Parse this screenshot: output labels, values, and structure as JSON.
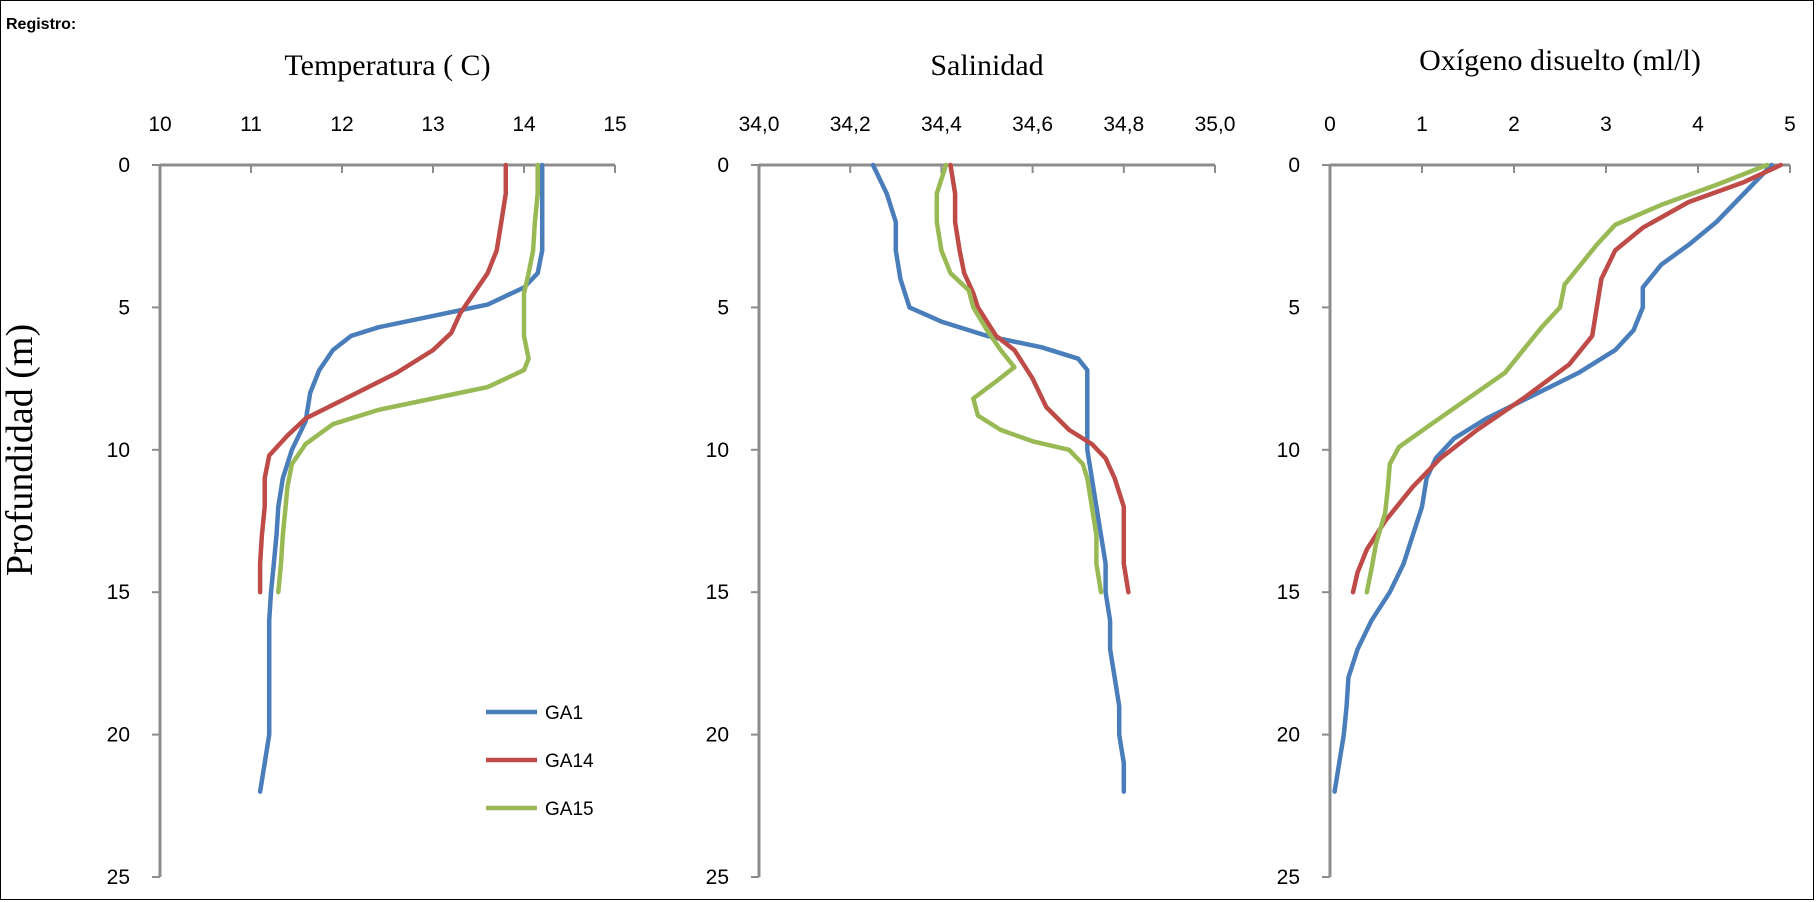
{
  "header": {
    "label": "Registro:"
  },
  "ylabel": "Profundidad (m)",
  "colors": {
    "GA1": "#4a7ebb",
    "GA14": "#be4b48",
    "GA15": "#98b954",
    "axis": "#8c8c8c"
  },
  "legend": [
    "GA1",
    "GA14",
    "GA15"
  ],
  "chart_data": [
    {
      "type": "line",
      "title": "Temperatura ( C)",
      "xlim": [
        10,
        15
      ],
      "x_ticks": [
        "10",
        "11",
        "12",
        "13",
        "14",
        "15"
      ],
      "ylim": [
        0,
        25
      ],
      "y_ticks": [
        "0",
        "5",
        "10",
        "15",
        "20",
        "25"
      ],
      "y_inverted": true,
      "series": [
        {
          "name": "GA1",
          "points": [
            [
              14.2,
              0
            ],
            [
              14.2,
              1
            ],
            [
              14.2,
              2
            ],
            [
              14.2,
              3
            ],
            [
              14.15,
              3.8
            ],
            [
              14.0,
              4.3
            ],
            [
              13.6,
              4.9
            ],
            [
              13.0,
              5.3
            ],
            [
              12.4,
              5.7
            ],
            [
              12.1,
              6.0
            ],
            [
              11.9,
              6.5
            ],
            [
              11.75,
              7.2
            ],
            [
              11.65,
              8
            ],
            [
              11.6,
              9
            ],
            [
              11.45,
              10
            ],
            [
              11.35,
              11
            ],
            [
              11.3,
              12
            ],
            [
              11.28,
              13
            ],
            [
              11.25,
              14
            ],
            [
              11.22,
              15
            ],
            [
              11.2,
              16
            ],
            [
              11.2,
              17
            ],
            [
              11.2,
              18
            ],
            [
              11.2,
              19
            ],
            [
              11.2,
              20
            ],
            [
              11.15,
              21
            ],
            [
              11.1,
              22
            ]
          ]
        },
        {
          "name": "GA14",
          "points": [
            [
              13.8,
              0
            ],
            [
              13.8,
              1
            ],
            [
              13.75,
              2
            ],
            [
              13.7,
              3
            ],
            [
              13.6,
              3.8
            ],
            [
              13.45,
              4.5
            ],
            [
              13.3,
              5.2
            ],
            [
              13.2,
              5.9
            ],
            [
              13.0,
              6.5
            ],
            [
              12.6,
              7.3
            ],
            [
              12.1,
              8.1
            ],
            [
              11.6,
              8.9
            ],
            [
              11.4,
              9.5
            ],
            [
              11.2,
              10.2
            ],
            [
              11.15,
              11
            ],
            [
              11.15,
              12
            ],
            [
              11.12,
              13
            ],
            [
              11.1,
              14
            ],
            [
              11.1,
              15
            ]
          ]
        },
        {
          "name": "GA15",
          "points": [
            [
              14.15,
              0
            ],
            [
              14.15,
              1
            ],
            [
              14.12,
              2
            ],
            [
              14.1,
              3
            ],
            [
              14.05,
              3.8
            ],
            [
              14.0,
              4.5
            ],
            [
              14.0,
              5
            ],
            [
              14.0,
              6
            ],
            [
              14.05,
              6.8
            ],
            [
              14.0,
              7.2
            ],
            [
              13.6,
              7.8
            ],
            [
              13.0,
              8.2
            ],
            [
              12.4,
              8.6
            ],
            [
              11.9,
              9.1
            ],
            [
              11.6,
              9.8
            ],
            [
              11.45,
              10.5
            ],
            [
              11.4,
              11.3
            ],
            [
              11.38,
              12
            ],
            [
              11.35,
              13
            ],
            [
              11.33,
              14
            ],
            [
              11.3,
              15
            ]
          ]
        }
      ]
    },
    {
      "type": "line",
      "title": "Salinidad",
      "xlim": [
        34.0,
        35.0
      ],
      "x_ticks": [
        "34,0",
        "34,2",
        "34,4",
        "34,6",
        "34,8",
        "35,0"
      ],
      "ylim": [
        0,
        25
      ],
      "y_ticks": [
        "0",
        "5",
        "10",
        "15",
        "20",
        "25"
      ],
      "y_inverted": true,
      "series": [
        {
          "name": "GA1",
          "points": [
            [
              34.25,
              0
            ],
            [
              34.28,
              1
            ],
            [
              34.3,
              2
            ],
            [
              34.3,
              3
            ],
            [
              34.31,
              4
            ],
            [
              34.33,
              5
            ],
            [
              34.4,
              5.5
            ],
            [
              34.5,
              6
            ],
            [
              34.62,
              6.4
            ],
            [
              34.7,
              6.8
            ],
            [
              34.72,
              7.2
            ],
            [
              34.72,
              8
            ],
            [
              34.72,
              9
            ],
            [
              34.72,
              10
            ],
            [
              34.73,
              11
            ],
            [
              34.74,
              12
            ],
            [
              34.75,
              13
            ],
            [
              34.76,
              14
            ],
            [
              34.76,
              15
            ],
            [
              34.77,
              16
            ],
            [
              34.77,
              17
            ],
            [
              34.78,
              18
            ],
            [
              34.79,
              19
            ],
            [
              34.79,
              20
            ],
            [
              34.8,
              21
            ],
            [
              34.8,
              22
            ]
          ]
        },
        {
          "name": "GA14",
          "points": [
            [
              34.42,
              0
            ],
            [
              34.43,
              1
            ],
            [
              34.43,
              2
            ],
            [
              34.44,
              3
            ],
            [
              34.45,
              3.8
            ],
            [
              34.47,
              4.5
            ],
            [
              34.48,
              5
            ],
            [
              34.5,
              5.5
            ],
            [
              34.52,
              6
            ],
            [
              34.56,
              6.5
            ],
            [
              34.6,
              7.5
            ],
            [
              34.63,
              8.5
            ],
            [
              34.68,
              9.3
            ],
            [
              34.73,
              9.8
            ],
            [
              34.76,
              10.3
            ],
            [
              34.78,
              11
            ],
            [
              34.8,
              12
            ],
            [
              34.8,
              13
            ],
            [
              34.8,
              14
            ],
            [
              34.81,
              15
            ]
          ]
        },
        {
          "name": "GA15",
          "points": [
            [
              34.41,
              0
            ],
            [
              34.39,
              1
            ],
            [
              34.39,
              2
            ],
            [
              34.4,
              3
            ],
            [
              34.42,
              3.8
            ],
            [
              34.46,
              4.4
            ],
            [
              34.47,
              5
            ],
            [
              34.5,
              5.8
            ],
            [
              34.53,
              6.5
            ],
            [
              34.56,
              7.1
            ],
            [
              34.52,
              7.6
            ],
            [
              34.47,
              8.2
            ],
            [
              34.48,
              8.8
            ],
            [
              34.53,
              9.3
            ],
            [
              34.6,
              9.7
            ],
            [
              34.68,
              10
            ],
            [
              34.71,
              10.5
            ],
            [
              34.72,
              11
            ],
            [
              34.73,
              12
            ],
            [
              34.74,
              13
            ],
            [
              34.74,
              14
            ],
            [
              34.75,
              15
            ]
          ]
        }
      ]
    },
    {
      "type": "line",
      "title": "Oxígeno disuelto (ml/l)",
      "xlim": [
        0,
        5
      ],
      "x_ticks": [
        "0",
        "1",
        "2",
        "3",
        "4",
        "5"
      ],
      "ylim": [
        0,
        25
      ],
      "y_ticks": [
        "0",
        "5",
        "10",
        "15",
        "20",
        "25"
      ],
      "y_inverted": true,
      "series": [
        {
          "name": "GA1",
          "points": [
            [
              4.8,
              0
            ],
            [
              4.5,
              1
            ],
            [
              4.2,
              2
            ],
            [
              3.9,
              2.8
            ],
            [
              3.6,
              3.5
            ],
            [
              3.4,
              4.3
            ],
            [
              3.4,
              5
            ],
            [
              3.3,
              5.8
            ],
            [
              3.1,
              6.5
            ],
            [
              2.7,
              7.3
            ],
            [
              2.2,
              8.1
            ],
            [
              1.7,
              8.9
            ],
            [
              1.35,
              9.6
            ],
            [
              1.15,
              10.3
            ],
            [
              1.05,
              11
            ],
            [
              1.0,
              12
            ],
            [
              0.9,
              13
            ],
            [
              0.8,
              14
            ],
            [
              0.65,
              15
            ],
            [
              0.45,
              16
            ],
            [
              0.3,
              17
            ],
            [
              0.2,
              18
            ],
            [
              0.18,
              19
            ],
            [
              0.15,
              20
            ],
            [
              0.1,
              21
            ],
            [
              0.05,
              22
            ]
          ]
        },
        {
          "name": "GA14",
          "points": [
            [
              4.9,
              0
            ],
            [
              4.5,
              0.6
            ],
            [
              3.9,
              1.3
            ],
            [
              3.4,
              2.2
            ],
            [
              3.1,
              3
            ],
            [
              2.95,
              4
            ],
            [
              2.9,
              5
            ],
            [
              2.85,
              6
            ],
            [
              2.6,
              7
            ],
            [
              2.1,
              8.2
            ],
            [
              1.6,
              9.3
            ],
            [
              1.2,
              10.3
            ],
            [
              0.9,
              11.3
            ],
            [
              0.6,
              12.5
            ],
            [
              0.4,
              13.5
            ],
            [
              0.3,
              14.3
            ],
            [
              0.25,
              15
            ]
          ]
        },
        {
          "name": "GA15",
          "points": [
            [
              4.75,
              0
            ],
            [
              4.2,
              0.7
            ],
            [
              3.6,
              1.4
            ],
            [
              3.1,
              2.1
            ],
            [
              2.9,
              2.8
            ],
            [
              2.7,
              3.6
            ],
            [
              2.55,
              4.2
            ],
            [
              2.5,
              5
            ],
            [
              2.3,
              5.7
            ],
            [
              2.1,
              6.5
            ],
            [
              1.9,
              7.3
            ],
            [
              1.5,
              8.2
            ],
            [
              1.1,
              9.1
            ],
            [
              0.75,
              9.9
            ],
            [
              0.65,
              10.5
            ],
            [
              0.63,
              11.3
            ],
            [
              0.6,
              12.2
            ],
            [
              0.5,
              13.3
            ],
            [
              0.45,
              14.2
            ],
            [
              0.4,
              15
            ]
          ]
        }
      ]
    }
  ]
}
